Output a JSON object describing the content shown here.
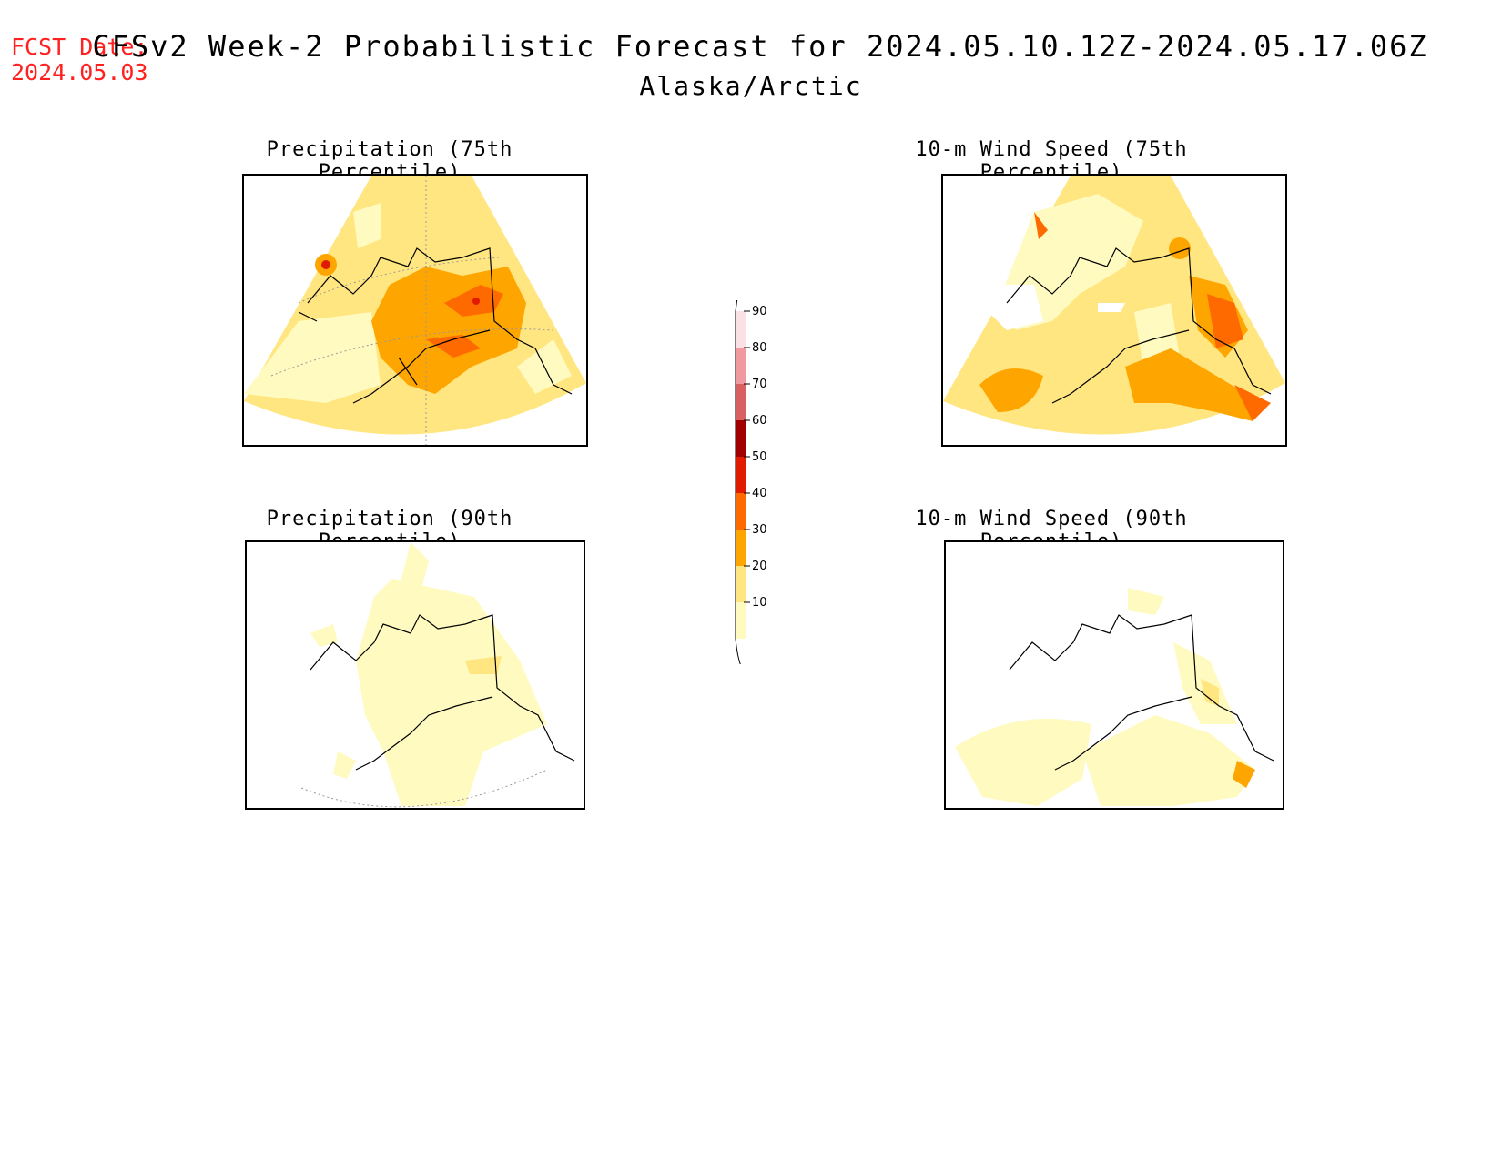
{
  "fcst_date": {
    "label": "FCST Date:",
    "value": "2024.05.03"
  },
  "title": "CFSv2 Week-2 Probabilistic Forecast for 2024.05.10.12Z-2024.05.17.06Z",
  "subtitle": "Alaska/Arctic",
  "panels": [
    {
      "title": "Precipitation (75th Percentile)"
    },
    {
      "title": "10-m Wind Speed (75th Percentile)"
    },
    {
      "title": "Precipitation (90th Percentile)"
    },
    {
      "title": "10-m Wind Speed (90th Percentile)"
    }
  ],
  "colorbar": {
    "ticks": [
      "10",
      "20",
      "30",
      "40",
      "50",
      "60",
      "70",
      "80",
      "90"
    ],
    "colors": [
      "#fffac0",
      "#ffe680",
      "#ffa500",
      "#ff6a00",
      "#e01b00",
      "#a00000",
      "#d96060",
      "#f09aa0",
      "#fbe1e3"
    ]
  }
}
